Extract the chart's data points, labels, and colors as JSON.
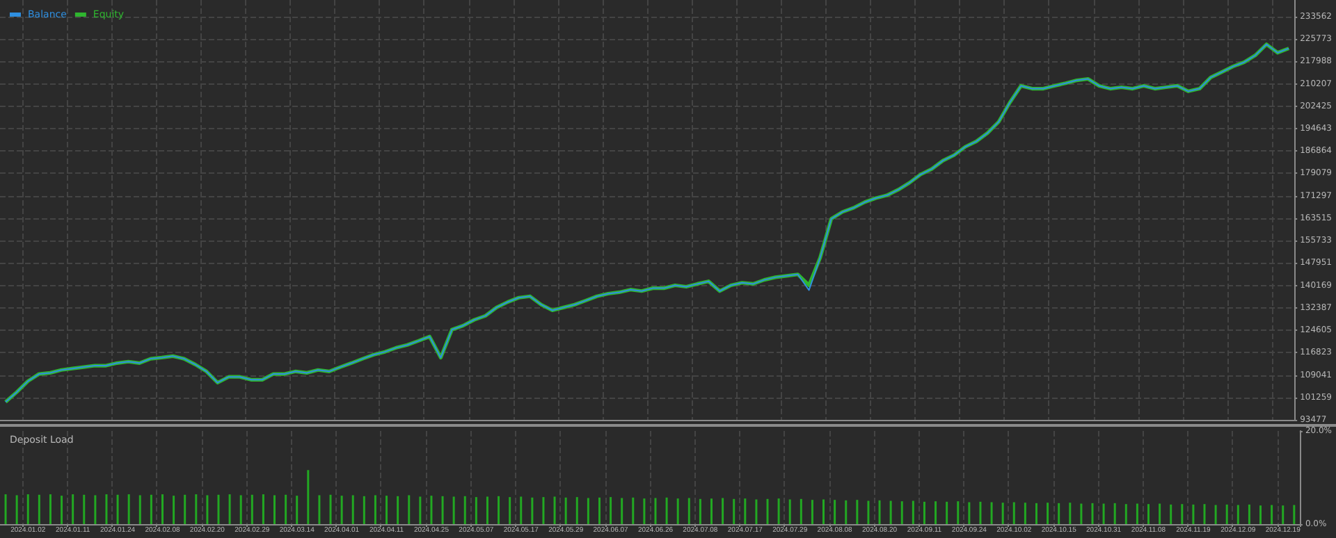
{
  "chart_data": [
    {
      "type": "line",
      "legend": "top left",
      "grid": true,
      "tick_labels": "y",
      "categories": [
        null,
        null,
        "2024.01.02",
        null,
        null,
        null,
        "2024.01.11",
        null,
        null,
        null,
        "2024.01.24",
        null,
        null,
        null,
        "2024.02.08",
        null,
        null,
        null,
        "2024.02.20",
        null,
        null,
        null,
        "2024.02.29",
        null,
        null,
        null,
        "2024.03.14",
        null,
        null,
        null,
        "2024.04.01",
        null,
        null,
        null,
        "2024.04.11",
        null,
        null,
        null,
        "2024.04.25",
        null,
        null,
        null,
        "2024.05.07",
        null,
        null,
        null,
        "2024.05.17",
        null,
        null,
        null,
        "2024.05.29",
        null,
        null,
        null,
        "2024.06.07",
        null,
        null,
        null,
        "2024.06.26",
        null,
        null,
        null,
        "2024.07.08",
        null,
        null,
        null,
        "2024.07.17",
        null,
        null,
        null,
        "2024.07.29",
        null,
        null,
        null,
        "2024.08.08",
        null,
        null,
        null,
        "2024.08.20",
        null,
        null,
        null,
        "2024.09.11",
        null,
        null,
        null,
        "2024.09.24",
        null,
        null,
        null,
        "2024.10.02",
        null,
        null,
        null,
        "2024.10.15",
        null,
        null,
        null,
        "2024.10.31",
        null,
        null,
        null,
        "2024.11.08",
        null,
        null,
        null,
        "2024.11.19",
        null,
        null,
        null,
        "2024.12.09",
        null,
        null,
        null,
        "2024.12.19",
        null
      ],
      "ylim": [
        93477,
        239300
      ],
      "yticks": [
        93477,
        101259,
        109041,
        116823,
        124605,
        132387,
        140169,
        147951,
        155733,
        163515,
        171297,
        179079,
        186864,
        194643,
        202425,
        210207,
        217988,
        225773,
        233562
      ],
      "series": [
        {
          "name": "Balance",
          "color": "#2f8fe0",
          "values": [
            99700,
            103100,
            106900,
            109400,
            109800,
            110800,
            111300,
            111800,
            112300,
            112300,
            113200,
            113700,
            113200,
            114700,
            115100,
            115600,
            114700,
            112700,
            110300,
            106400,
            108400,
            108400,
            107400,
            107400,
            109400,
            109400,
            110300,
            109800,
            110800,
            110300,
            111800,
            113200,
            114700,
            116100,
            117100,
            118500,
            119500,
            120900,
            122400,
            115100,
            124800,
            126200,
            128200,
            129600,
            132500,
            134400,
            135900,
            136400,
            133500,
            131500,
            132500,
            133500,
            134900,
            136400,
            137300,
            137800,
            138700,
            138200,
            139200,
            139200,
            140200,
            139700,
            140700,
            141600,
            138200,
            140200,
            141100,
            140700,
            142100,
            143000,
            143500,
            144000,
            138500,
            149800,
            163300,
            165700,
            167100,
            169100,
            170500,
            171500,
            173400,
            175800,
            178700,
            180600,
            183500,
            185400,
            188300,
            190200,
            193100,
            197000,
            203700,
            209500,
            208500,
            208500,
            209500,
            210400,
            211400,
            211900,
            209500,
            208500,
            209000,
            208500,
            209500,
            208500,
            209000,
            209500,
            207600,
            208500,
            212400,
            214300,
            216200,
            217700,
            220100,
            223900,
            221000,
            222500
          ]
        },
        {
          "name": "Equity",
          "color": "#2fb52f",
          "values": [
            99700,
            103100,
            106900,
            109400,
            109800,
            110800,
            111300,
            111800,
            112300,
            112300,
            113200,
            113700,
            113200,
            114700,
            115100,
            115600,
            114700,
            112700,
            110300,
            106400,
            108400,
            108400,
            107400,
            107400,
            109400,
            109400,
            110300,
            109800,
            110800,
            110300,
            111800,
            113200,
            114700,
            116100,
            117100,
            118500,
            119500,
            120900,
            122400,
            115100,
            124800,
            126200,
            128200,
            129600,
            132500,
            134400,
            135900,
            136400,
            133500,
            131500,
            132500,
            133500,
            134900,
            136400,
            137300,
            137800,
            138700,
            138200,
            139200,
            139200,
            140200,
            139700,
            140700,
            141600,
            138200,
            140200,
            141100,
            140700,
            142100,
            143000,
            143500,
            144000,
            140200,
            149800,
            163300,
            165700,
            167100,
            169100,
            170500,
            171500,
            173400,
            175800,
            178700,
            180600,
            183500,
            185400,
            188300,
            190200,
            193100,
            197000,
            203700,
            209500,
            208500,
            208500,
            209500,
            210400,
            211400,
            211900,
            209500,
            208500,
            209000,
            208500,
            209500,
            208500,
            209000,
            209500,
            207600,
            208500,
            212400,
            214300,
            216200,
            217700,
            220100,
            223900,
            221000,
            222500
          ]
        }
      ]
    },
    {
      "type": "bar",
      "title": "Deposit Load",
      "grid": "x",
      "color": "#22a822",
      "categories": [
        null,
        null,
        "2024.01.02",
        null,
        null,
        null,
        "2024.01.11",
        null,
        null,
        null,
        "2024.01.24",
        null,
        null,
        null,
        "2024.02.08",
        null,
        null,
        null,
        "2024.02.20",
        null,
        null,
        null,
        "2024.02.29",
        null,
        null,
        null,
        "2024.03.14",
        null,
        null,
        null,
        "2024.04.01",
        null,
        null,
        null,
        "2024.04.11",
        null,
        null,
        null,
        "2024.04.25",
        null,
        null,
        null,
        "2024.05.07",
        null,
        null,
        null,
        "2024.05.17",
        null,
        null,
        null,
        "2024.05.29",
        null,
        null,
        null,
        "2024.06.07",
        null,
        null,
        null,
        "2024.06.26",
        null,
        null,
        null,
        "2024.07.08",
        null,
        null,
        null,
        "2024.07.17",
        null,
        null,
        null,
        "2024.07.29",
        null,
        null,
        null,
        "2024.08.08",
        null,
        null,
        null,
        "2024.08.20",
        null,
        null,
        null,
        "2024.09.11",
        null,
        null,
        null,
        "2024.09.24",
        null,
        null,
        null,
        "2024.10.02",
        null,
        null,
        null,
        "2024.10.15",
        null,
        null,
        null,
        "2024.10.31",
        null,
        null,
        null,
        "2024.11.08",
        null,
        null,
        null,
        "2024.11.19",
        null,
        null,
        null,
        "2024.12.09",
        null,
        null,
        null,
        "2024.12.19",
        null
      ],
      "ylim": [
        0,
        20
      ],
      "yticks": [
        {
          "value": 0,
          "label": "0.0%"
        },
        {
          "value": 20,
          "label": "20.0%"
        }
      ],
      "values": [
        6.4,
        6.2,
        6.4,
        6.3,
        6.4,
        6.1,
        6.4,
        6.3,
        6.2,
        6.4,
        6.3,
        6.4,
        6.2,
        6.3,
        6.4,
        6.1,
        6.3,
        6.4,
        6.2,
        6.3,
        6.4,
        6.2,
        6.3,
        6.4,
        6.2,
        6.3,
        6.1,
        11.6,
        6.2,
        6.3,
        6.1,
        6.2,
        6.0,
        6.2,
        6.1,
        6.0,
        6.2,
        5.9,
        6.1,
        6.0,
        5.9,
        6.0,
        5.8,
        5.9,
        6.0,
        5.8,
        5.9,
        5.7,
        5.8,
        5.9,
        5.7,
        5.8,
        5.6,
        5.7,
        5.8,
        5.6,
        5.7,
        5.5,
        5.6,
        5.7,
        5.5,
        5.6,
        5.4,
        5.5,
        5.6,
        5.4,
        5.5,
        5.3,
        5.4,
        5.5,
        5.3,
        5.4,
        5.2,
        5.3,
        5.2,
        5.1,
        5.2,
        5.0,
        5.1,
        5.0,
        4.9,
        5.0,
        4.8,
        4.9,
        4.8,
        4.9,
        4.7,
        4.8,
        4.7,
        4.6,
        4.7,
        4.6,
        4.5,
        4.6,
        4.5,
        4.6,
        4.4,
        4.5,
        4.4,
        4.5,
        4.3,
        4.4,
        4.3,
        4.4,
        4.2,
        4.3,
        4.2,
        4.3,
        4.1,
        4.2,
        4.1,
        4.2,
        4.0,
        4.1,
        4.0,
        4.1
      ]
    }
  ]
}
